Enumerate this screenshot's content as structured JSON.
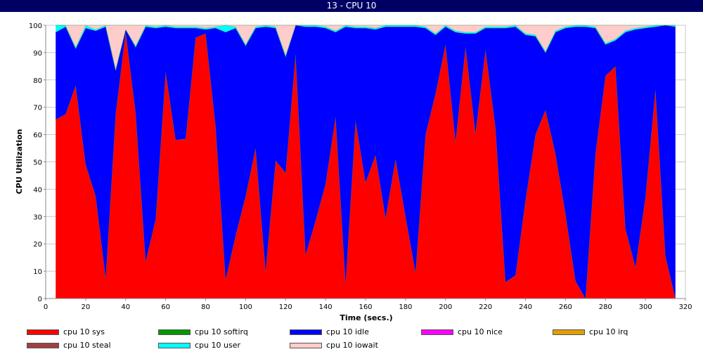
{
  "window": {
    "title": "13 - CPU 10"
  },
  "chart_data": {
    "type": "area",
    "stacked": true,
    "xlabel": "Time (secs.)",
    "ylabel": "CPU Utilization",
    "xlim": [
      0,
      320
    ],
    "ylim": [
      0,
      100
    ],
    "xticks": [
      0,
      20,
      40,
      60,
      80,
      100,
      120,
      140,
      160,
      180,
      200,
      220,
      240,
      260,
      280,
      300,
      320
    ],
    "yticks": [
      0,
      10,
      20,
      30,
      40,
      50,
      60,
      70,
      80,
      90,
      100
    ],
    "grid": true,
    "legend_position": "bottom",
    "x": [
      5,
      10,
      15,
      20,
      25,
      30,
      35,
      40,
      45,
      50,
      55,
      60,
      65,
      70,
      75,
      80,
      85,
      90,
      95,
      100,
      105,
      110,
      115,
      120,
      125,
      130,
      135,
      140,
      145,
      150,
      155,
      160,
      165,
      170,
      175,
      180,
      185,
      190,
      195,
      200,
      205,
      210,
      215,
      220,
      225,
      230,
      235,
      240,
      245,
      250,
      255,
      260,
      265,
      270,
      275,
      280,
      285,
      290,
      295,
      300,
      305,
      310,
      315
    ],
    "series": [
      {
        "name": "cpu 10 sys",
        "color": "#ff0000",
        "values": [
          65.5,
          67.5,
          78,
          49,
          37.5,
          7.5,
          67.5,
          97.5,
          68,
          13.5,
          29,
          83,
          58,
          58.5,
          95.5,
          97,
          63,
          7,
          23,
          37.5,
          55,
          10,
          50.5,
          46,
          89.5,
          16,
          28.5,
          42,
          66.5,
          5.5,
          65,
          42.5,
          52.5,
          29.5,
          51,
          30,
          9.5,
          60,
          75,
          93,
          57.5,
          92,
          60.5,
          91,
          62.5,
          6,
          8.5,
          36,
          60,
          69,
          53,
          31,
          6.5,
          0,
          53,
          81.5,
          85,
          25.5,
          11.5,
          37,
          76.5,
          15.5,
          0
        ]
      },
      {
        "name": "cpu 10 softirq",
        "color": "#009900",
        "values": [
          0,
          0,
          0,
          0,
          0,
          0,
          0,
          0,
          0,
          0,
          0,
          0,
          0,
          0,
          0,
          0,
          0,
          0,
          0,
          0,
          0,
          0,
          0,
          0,
          0,
          0,
          0,
          0,
          0,
          0,
          0,
          0,
          0,
          0,
          0,
          0,
          0,
          0,
          0,
          0,
          0,
          0,
          0,
          0,
          0,
          0,
          0,
          0,
          0,
          0,
          0,
          0,
          0,
          0,
          0,
          0,
          0,
          0,
          0,
          0,
          0,
          0,
          0
        ]
      },
      {
        "name": "cpu 10 idle",
        "color": "#0000ff",
        "values": [
          32,
          32,
          13.5,
          50,
          60.5,
          92,
          16,
          1,
          24,
          86,
          70,
          16.5,
          41,
          40.5,
          3.5,
          1.5,
          36,
          90.5,
          76,
          55,
          44,
          89.5,
          48.5,
          42.5,
          10.5,
          83.5,
          71,
          57,
          31,
          94,
          34,
          56.5,
          46,
          70,
          48.5,
          69.5,
          90,
          39,
          21.5,
          6.5,
          40,
          5,
          36.5,
          8,
          36.5,
          93,
          91,
          60.5,
          36,
          21,
          44.5,
          68,
          93,
          99.5,
          46,
          11.5,
          9.5,
          72,
          87,
          62,
          23,
          84.5,
          99.5
        ]
      },
      {
        "name": "cpu 10 nice",
        "color": "#ff00ff",
        "values": [
          0,
          0,
          0,
          0,
          0,
          0,
          0,
          0,
          0,
          0,
          0,
          0,
          0,
          0,
          0,
          0,
          0,
          0,
          0,
          0,
          0,
          0,
          0,
          0,
          0,
          0,
          0,
          0,
          0,
          0,
          0,
          0,
          0,
          0,
          0,
          0,
          0,
          0,
          0,
          0,
          0,
          0,
          0,
          0,
          0,
          0,
          0,
          0,
          0,
          0,
          0,
          0,
          0,
          0,
          0,
          0,
          0,
          0,
          0,
          0,
          0,
          0,
          0
        ]
      },
      {
        "name": "cpu 10 irq",
        "color": "#e0a000",
        "values": [
          0,
          0,
          0,
          0,
          0,
          0,
          0,
          0,
          0,
          0,
          0,
          0,
          0,
          0,
          0,
          0,
          0,
          0,
          0,
          0,
          0,
          0,
          0,
          0,
          0,
          0,
          0,
          0,
          0,
          0,
          0,
          0,
          0,
          0,
          0,
          0,
          0,
          0,
          0,
          0,
          0,
          0,
          0,
          0,
          0,
          0,
          0,
          0,
          0,
          0,
          0,
          0,
          0,
          0,
          0,
          0,
          0,
          0,
          0,
          0,
          0,
          0,
          0
        ]
      },
      {
        "name": "cpu 10 steal",
        "color": "#a04040",
        "values": [
          0,
          0,
          0,
          0,
          0,
          0,
          0,
          0,
          0,
          0,
          0,
          0,
          0,
          0,
          0,
          0,
          0,
          0,
          0,
          0,
          0,
          0,
          0,
          0,
          0,
          0,
          0,
          0,
          0,
          0,
          0,
          0,
          0,
          0,
          0,
          0,
          0,
          0,
          0,
          0,
          0,
          0,
          0,
          0,
          0,
          0,
          0,
          0,
          0,
          0,
          0,
          0,
          0,
          0,
          0,
          0,
          0,
          0,
          0,
          0,
          0,
          0,
          0
        ]
      },
      {
        "name": "cpu 10 user",
        "color": "#00ffff",
        "values": [
          2.5,
          0.5,
          0.5,
          1,
          0.5,
          0.5,
          0.5,
          0,
          0.5,
          0.5,
          0.5,
          0.5,
          0.5,
          0.5,
          0.5,
          0.5,
          0.5,
          2.5,
          0.5,
          0.5,
          0.5,
          0.5,
          0.5,
          0.5,
          0,
          0.5,
          0.5,
          0.5,
          0.5,
          0.5,
          0.5,
          0.5,
          0.5,
          0.5,
          0.5,
          0.5,
          0.5,
          0.5,
          0.5,
          0.5,
          0.5,
          0.5,
          0.5,
          0.5,
          0.5,
          0.5,
          0.5,
          0.5,
          0.5,
          0.5,
          0.5,
          0.5,
          0.5,
          0.5,
          0.5,
          0.5,
          0.5,
          0.5,
          0.5,
          0.5,
          0.5,
          0,
          0.5
        ]
      },
      {
        "name": "cpu 10 iowait",
        "color": "#ffcccc",
        "values": [
          0,
          0,
          8,
          0,
          1.5,
          0,
          16,
          1.5,
          7.5,
          0,
          0.5,
          0,
          0.5,
          0.5,
          0.5,
          1,
          0.5,
          0,
          0.5,
          7,
          0.5,
          0,
          0.5,
          11,
          0,
          0,
          0,
          0.5,
          2,
          0,
          0.5,
          0.5,
          1,
          0,
          0,
          0,
          0,
          0.5,
          3,
          0,
          2,
          2.5,
          2.5,
          0.5,
          0.5,
          0.5,
          0,
          3,
          3.5,
          9.5,
          2,
          0.5,
          0,
          0,
          0.5,
          6.5,
          5,
          2,
          1,
          0.5,
          0,
          0,
          0
        ]
      }
    ]
  }
}
